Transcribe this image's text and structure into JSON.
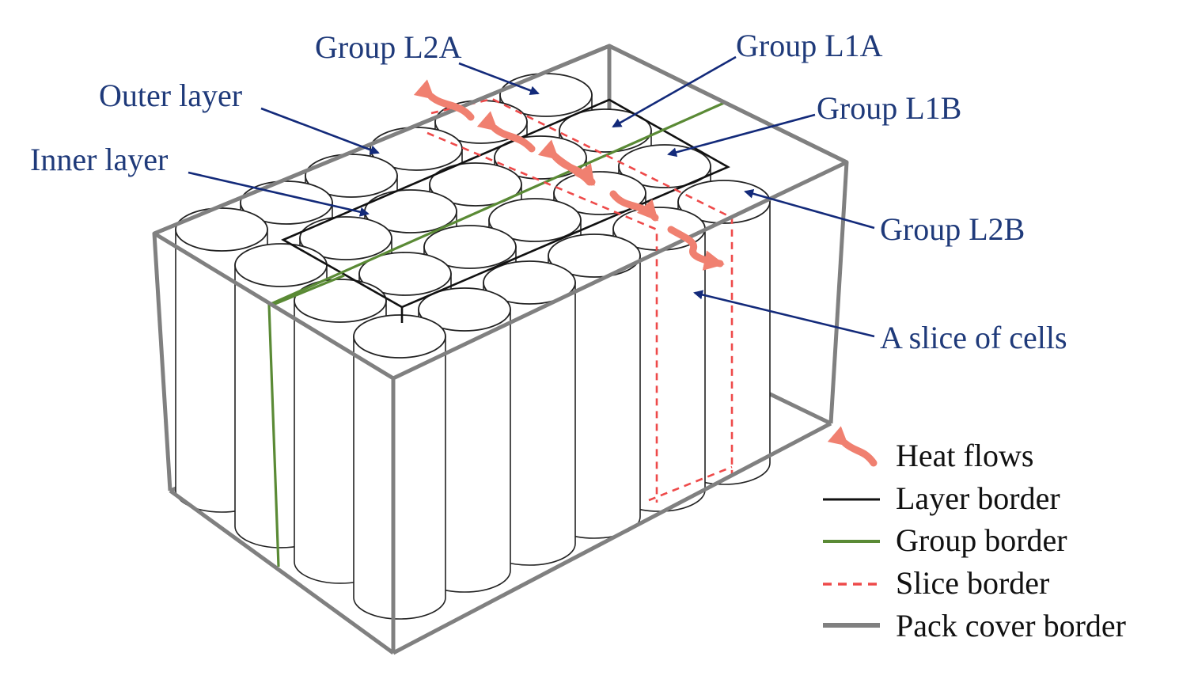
{
  "labels": {
    "group_l2a": "Group L2A",
    "group_l1a": "Group L1A",
    "group_l1b": "Group L1B",
    "group_l2b": "Group L2B",
    "outer_layer": "Outer layer",
    "inner_layer": "Inner layer",
    "slice_of_cells": "A slice of cells"
  },
  "legend": {
    "heat_flows": "Heat flows",
    "layer_border": "Layer border",
    "group_border": "Group border",
    "slice_border": "Slice border",
    "pack_cover_border": "Pack cover border"
  },
  "colors": {
    "label_text": "#1f3a7a",
    "heat_flow": "#f08070",
    "layer_border": "#111111",
    "group_border": "#5a8a35",
    "slice_border": "#ee4a4a",
    "pack_cover_border": "#808080"
  },
  "grid": {
    "rows": 4,
    "columns": 6
  }
}
